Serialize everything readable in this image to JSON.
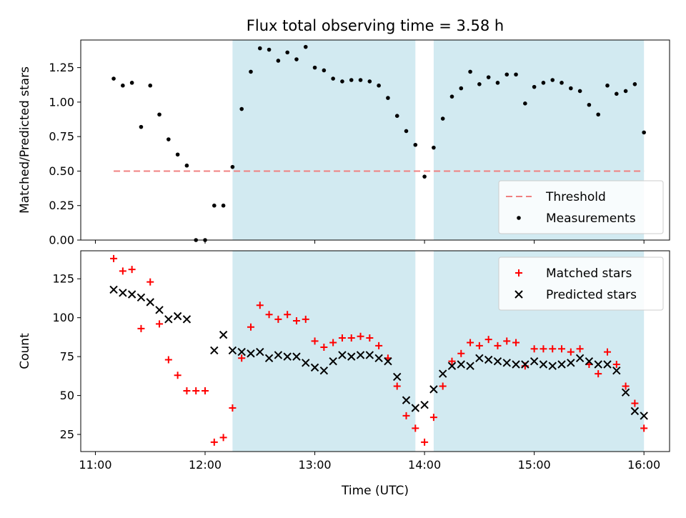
{
  "chart_data": {
    "title": "Flux total observing time = 3.58 h",
    "xlabel": "Time (UTC)",
    "x_ticks": [
      "11:00",
      "12:00",
      "13:00",
      "14:00",
      "15:00",
      "16:00"
    ],
    "colors": {
      "shade": "#add8e6",
      "threshold": "#f08080",
      "measurement": "#000000",
      "matched": "#ff0000",
      "predicted": "#000000"
    },
    "shaded_intervals": [
      [
        "12:15",
        "13:55"
      ],
      [
        "14:05",
        "16:00"
      ]
    ],
    "panels": [
      {
        "type": "scatter",
        "ylabel": "Matched/Predicted stars",
        "ylim": [
          0,
          1.45
        ],
        "y_ticks": [
          "0.00",
          "0.25",
          "0.50",
          "0.75",
          "1.00",
          "1.25"
        ],
        "legend": {
          "position": "lower-right",
          "entries": [
            "Threshold",
            "Measurements"
          ]
        },
        "threshold": {
          "name": "Threshold",
          "y": 0.5,
          "x_range": [
            "11:10",
            "16:00"
          ]
        },
        "series": [
          {
            "name": "Measurements",
            "marker": "dot",
            "points": [
              [
                "11:10",
                1.17
              ],
              [
                "11:15",
                1.12
              ],
              [
                "11:20",
                1.14
              ],
              [
                "11:25",
                0.82
              ],
              [
                "11:30",
                1.12
              ],
              [
                "11:35",
                0.91
              ],
              [
                "11:40",
                0.73
              ],
              [
                "11:45",
                0.62
              ],
              [
                "11:50",
                0.54
              ],
              [
                "11:55",
                0.0
              ],
              [
                "12:00",
                0.0
              ],
              [
                "12:05",
                0.25
              ],
              [
                "12:10",
                0.25
              ],
              [
                "12:15",
                0.53
              ],
              [
                "12:20",
                0.95
              ],
              [
                "12:25",
                1.22
              ],
              [
                "12:30",
                1.39
              ],
              [
                "12:35",
                1.38
              ],
              [
                "12:40",
                1.3
              ],
              [
                "12:45",
                1.36
              ],
              [
                "12:50",
                1.31
              ],
              [
                "12:55",
                1.4
              ],
              [
                "13:00",
                1.25
              ],
              [
                "13:05",
                1.23
              ],
              [
                "13:10",
                1.17
              ],
              [
                "13:15",
                1.15
              ],
              [
                "13:20",
                1.16
              ],
              [
                "13:25",
                1.16
              ],
              [
                "13:30",
                1.15
              ],
              [
                "13:35",
                1.12
              ],
              [
                "13:40",
                1.03
              ],
              [
                "13:45",
                0.9
              ],
              [
                "13:50",
                0.79
              ],
              [
                "13:55",
                0.69
              ],
              [
                "14:00",
                0.46
              ],
              [
                "14:05",
                0.67
              ],
              [
                "14:10",
                0.88
              ],
              [
                "14:15",
                1.04
              ],
              [
                "14:20",
                1.1
              ],
              [
                "14:25",
                1.22
              ],
              [
                "14:30",
                1.13
              ],
              [
                "14:35",
                1.18
              ],
              [
                "14:40",
                1.14
              ],
              [
                "14:45",
                1.2
              ],
              [
                "14:50",
                1.2
              ],
              [
                "14:55",
                0.99
              ],
              [
                "15:00",
                1.11
              ],
              [
                "15:05",
                1.14
              ],
              [
                "15:10",
                1.16
              ],
              [
                "15:15",
                1.14
              ],
              [
                "15:20",
                1.1
              ],
              [
                "15:25",
                1.08
              ],
              [
                "15:30",
                0.98
              ],
              [
                "15:35",
                0.91
              ],
              [
                "15:40",
                1.12
              ],
              [
                "15:45",
                1.06
              ],
              [
                "15:50",
                1.08
              ],
              [
                "15:55",
                1.13
              ],
              [
                "16:00",
                0.78
              ]
            ]
          }
        ]
      },
      {
        "type": "scatter",
        "ylabel": "Count",
        "ylim": [
          14,
          143
        ],
        "y_ticks": [
          "25",
          "50",
          "75",
          "100",
          "125"
        ],
        "legend": {
          "position": "upper-right",
          "entries": [
            "Matched stars",
            "Predicted stars"
          ]
        },
        "series": [
          {
            "name": "Matched stars",
            "marker": "plus",
            "points": [
              [
                "11:10",
                138
              ],
              [
                "11:15",
                130
              ],
              [
                "11:20",
                131
              ],
              [
                "11:25",
                93
              ],
              [
                "11:30",
                123
              ],
              [
                "11:35",
                96
              ],
              [
                "11:40",
                73
              ],
              [
                "11:45",
                63
              ],
              [
                "11:50",
                53
              ],
              [
                "11:55",
                53
              ],
              [
                "12:00",
                53
              ],
              [
                "12:05",
                20
              ],
              [
                "12:10",
                23
              ],
              [
                "12:15",
                42
              ],
              [
                "12:20",
                74
              ],
              [
                "12:25",
                94
              ],
              [
                "12:30",
                108
              ],
              [
                "12:35",
                102
              ],
              [
                "12:40",
                99
              ],
              [
                "12:45",
                102
              ],
              [
                "12:50",
                98
              ],
              [
                "12:55",
                99
              ],
              [
                "13:00",
                85
              ],
              [
                "13:05",
                81
              ],
              [
                "13:10",
                84
              ],
              [
                "13:15",
                87
              ],
              [
                "13:20",
                87
              ],
              [
                "13:25",
                88
              ],
              [
                "13:30",
                87
              ],
              [
                "13:35",
                82
              ],
              [
                "13:40",
                74
              ],
              [
                "13:45",
                56
              ],
              [
                "13:50",
                37
              ],
              [
                "13:55",
                29
              ],
              [
                "14:00",
                20
              ],
              [
                "14:05",
                36
              ],
              [
                "14:10",
                56
              ],
              [
                "14:15",
                72
              ],
              [
                "14:20",
                77
              ],
              [
                "14:25",
                84
              ],
              [
                "14:30",
                82
              ],
              [
                "14:35",
                86
              ],
              [
                "14:40",
                82
              ],
              [
                "14:45",
                85
              ],
              [
                "14:50",
                84
              ],
              [
                "14:55",
                69
              ],
              [
                "15:00",
                80
              ],
              [
                "15:05",
                80
              ],
              [
                "15:10",
                80
              ],
              [
                "15:15",
                80
              ],
              [
                "15:20",
                78
              ],
              [
                "15:25",
                80
              ],
              [
                "15:30",
                70
              ],
              [
                "15:35",
                64
              ],
              [
                "15:40",
                78
              ],
              [
                "15:45",
                70
              ],
              [
                "15:50",
                56
              ],
              [
                "15:55",
                45
              ],
              [
                "16:00",
                29
              ]
            ]
          },
          {
            "name": "Predicted stars",
            "marker": "x",
            "points": [
              [
                "11:10",
                118
              ],
              [
                "11:15",
                116
              ],
              [
                "11:20",
                115
              ],
              [
                "11:25",
                113
              ],
              [
                "11:30",
                110
              ],
              [
                "11:35",
                105
              ],
              [
                "11:40",
                99
              ],
              [
                "11:45",
                101
              ],
              [
                "11:50",
                99
              ],
              [
                "12:05",
                79
              ],
              [
                "12:10",
                89
              ],
              [
                "12:15",
                79
              ],
              [
                "12:20",
                78
              ],
              [
                "12:25",
                77
              ],
              [
                "12:30",
                78
              ],
              [
                "12:35",
                74
              ],
              [
                "12:40",
                76
              ],
              [
                "12:45",
                75
              ],
              [
                "12:50",
                75
              ],
              [
                "12:55",
                71
              ],
              [
                "13:00",
                68
              ],
              [
                "13:05",
                66
              ],
              [
                "13:10",
                72
              ],
              [
                "13:15",
                76
              ],
              [
                "13:20",
                75
              ],
              [
                "13:25",
                76
              ],
              [
                "13:30",
                76
              ],
              [
                "13:35",
                74
              ],
              [
                "13:40",
                72
              ],
              [
                "13:45",
                62
              ],
              [
                "13:50",
                47
              ],
              [
                "13:55",
                42
              ],
              [
                "14:00",
                44
              ],
              [
                "14:05",
                54
              ],
              [
                "14:10",
                64
              ],
              [
                "14:15",
                69
              ],
              [
                "14:20",
                70
              ],
              [
                "14:25",
                69
              ],
              [
                "14:30",
                74
              ],
              [
                "14:35",
                73
              ],
              [
                "14:40",
                72
              ],
              [
                "14:45",
                71
              ],
              [
                "14:50",
                70
              ],
              [
                "14:55",
                70
              ],
              [
                "15:00",
                72
              ],
              [
                "15:05",
                70
              ],
              [
                "15:10",
                69
              ],
              [
                "15:15",
                70
              ],
              [
                "15:20",
                71
              ],
              [
                "15:25",
                74
              ],
              [
                "15:30",
                72
              ],
              [
                "15:35",
                70
              ],
              [
                "15:40",
                70
              ],
              [
                "15:45",
                66
              ],
              [
                "15:50",
                52
              ],
              [
                "15:55",
                40
              ],
              [
                "16:00",
                37
              ]
            ]
          }
        ]
      }
    ]
  }
}
